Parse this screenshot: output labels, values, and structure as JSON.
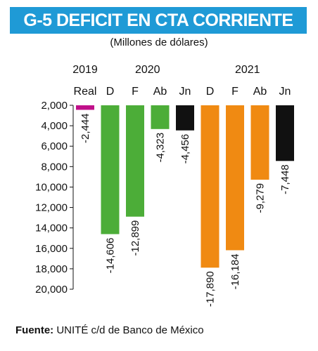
{
  "title": "G-5 DEFICIT EN CTA CORRIENTE",
  "subtitle": "(Millones de dólares)",
  "source": {
    "label": "Fuente:",
    "text": "UNITÉ c/d de Banco de México"
  },
  "chart_data": {
    "type": "bar",
    "title": "G-5 DEFICIT EN CTA CORRIENTE",
    "subtitle": "(Millones de dólares)",
    "years": [
      {
        "label": "2019",
        "start": 0,
        "end": 0
      },
      {
        "label": "2020",
        "start": 1,
        "end": 4
      },
      {
        "label": "2021",
        "start": 5,
        "end": 8
      }
    ],
    "categories": [
      "Real",
      "D",
      "F",
      "Ab",
      "Jn",
      "D",
      "F",
      "Ab",
      "Jn"
    ],
    "values": [
      -2444,
      -14606,
      -12899,
      -4323,
      -4456,
      -17890,
      -16184,
      -9279,
      -7448
    ],
    "value_labels": [
      "-2,444",
      "-14,606",
      "-12,899",
      "-4,323",
      "-4,456",
      "-17,890",
      "-16,184",
      "-9,279",
      "-7,448"
    ],
    "colors": [
      "#c0108a",
      "#4cad38",
      "#4cad38",
      "#4cad38",
      "#111111",
      "#f08a12",
      "#f08a12",
      "#f08a12",
      "#111111"
    ],
    "yticks": [
      2000,
      4000,
      6000,
      8000,
      10000,
      12000,
      14000,
      16000,
      18000,
      20000
    ],
    "ytick_labels": [
      "2,000",
      "4,000",
      "6,000",
      "8,000",
      "10,000",
      "12,000",
      "14,000",
      "16,000",
      "18,000",
      "20,000"
    ],
    "ylim": [
      2000,
      20000
    ],
    "xlabel": "",
    "ylabel": "",
    "grid": false,
    "legend": "none"
  }
}
